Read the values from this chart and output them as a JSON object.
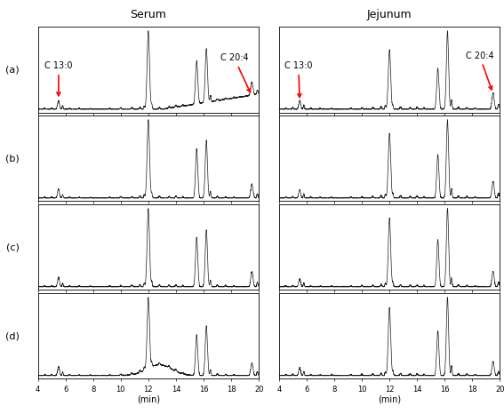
{
  "title_left": "Serum",
  "title_right": "Jejunum",
  "row_labels": [
    "(a)",
    "(b)",
    "(c)",
    "(d)"
  ],
  "xlabel": "(min)",
  "xmin": 4,
  "xmax": 20,
  "xticks": [
    4,
    6,
    8,
    10,
    12,
    14,
    16,
    18,
    20
  ],
  "annotation_c130": "C 13:0",
  "annotation_c204": "C 20:4",
  "bg_color": "#ffffff",
  "line_color": "#1a1a1a",
  "arrow_color": "#ff0000",
  "annotation_color": "#000000"
}
